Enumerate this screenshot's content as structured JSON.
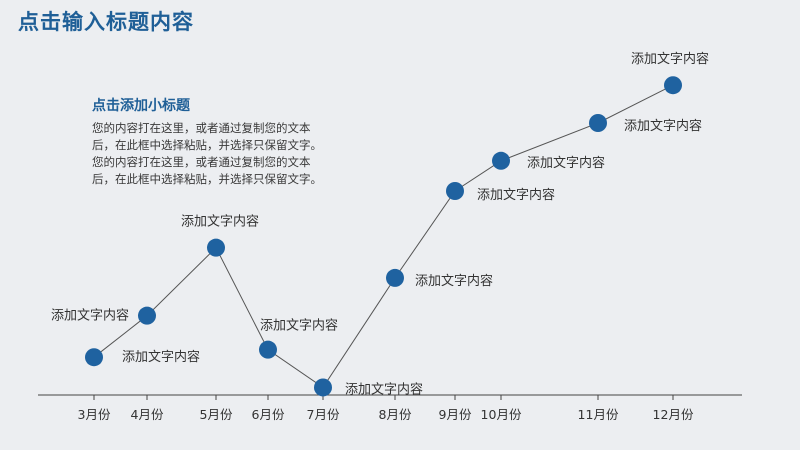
{
  "header": {
    "title": "点击输入标题内容"
  },
  "intro": {
    "subtitle": "点击添加小标题",
    "lines": [
      "您的内容打在这里，或者通过复制您的文本",
      "后，在此框中选择粘贴，并选择只保留文字。",
      "您的内容打在这里，或者通过复制您的文本",
      "后，在此框中选择粘贴，并选择只保留文字。"
    ]
  },
  "colors": {
    "accent": "#1f5f97",
    "marker": "#1f62a0",
    "line": "#555555",
    "background": "#eceef1"
  },
  "chart_data": {
    "type": "line",
    "categories": [
      "3月份",
      "4月份",
      "5月份",
      "6月份",
      "7月份",
      "8月份",
      "9月份",
      "10月份",
      "11月份",
      "12月份"
    ],
    "values": [
      1.0,
      2.1,
      3.9,
      1.2,
      0.2,
      3.1,
      5.4,
      6.2,
      7.2,
      8.2
    ],
    "point_labels": [
      "添加文字内容",
      "添加文字内容",
      "添加文字内容",
      "添加文字内容",
      "添加文字内容",
      "添加文字内容",
      "添加文字内容",
      "添加文字内容",
      "添加文字内容",
      "添加文字内容"
    ],
    "ylim": [
      0,
      9
    ],
    "grid": false,
    "legend": "none"
  }
}
